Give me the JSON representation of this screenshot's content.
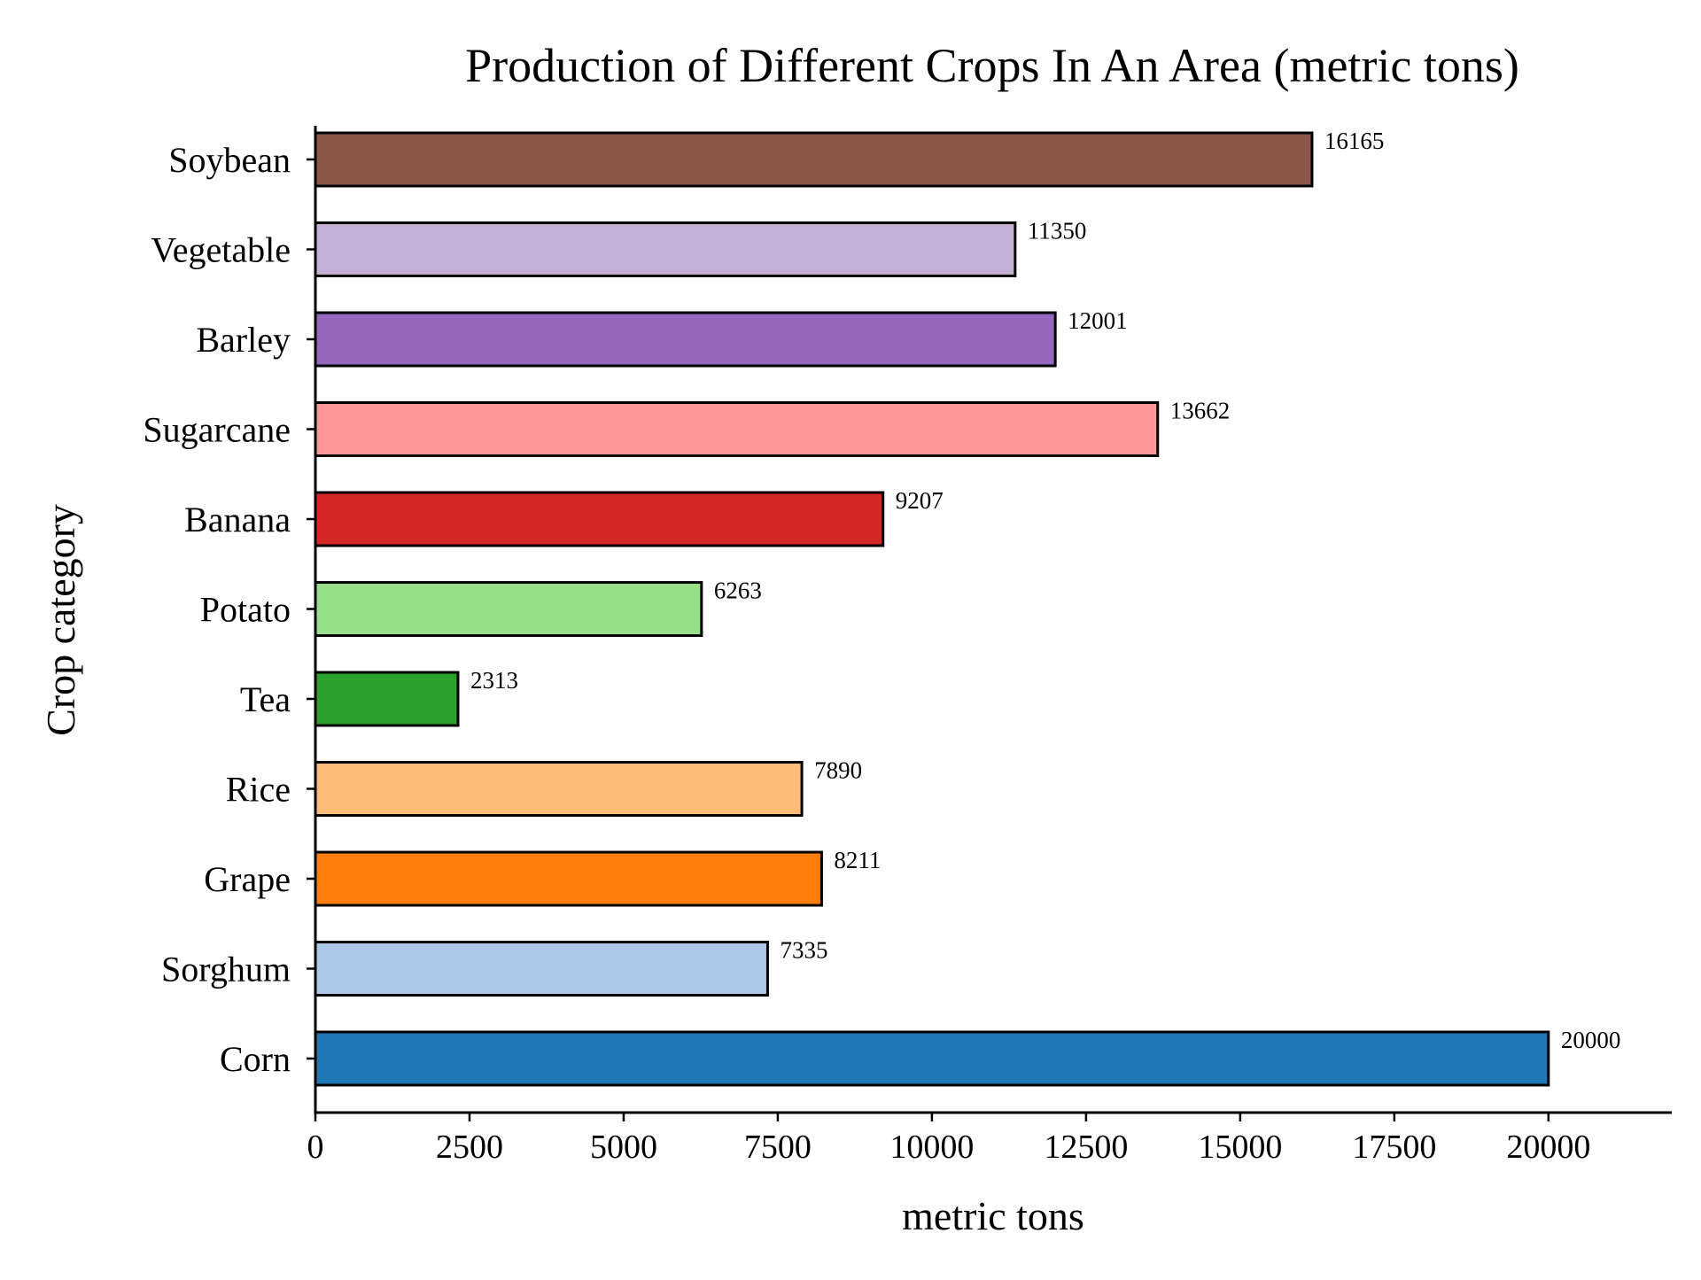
{
  "chart_data": {
    "type": "bar",
    "orientation": "horizontal",
    "title": "Production of Different Crops In An Area (metric tons)",
    "xlabel": "metric tons",
    "ylabel": "Crop category",
    "xlim": [
      0,
      22000
    ],
    "xticks": [
      0,
      2500,
      5000,
      7500,
      10000,
      12500,
      15000,
      17500,
      20000
    ],
    "categories": [
      "Corn",
      "Sorghum",
      "Grape",
      "Rice",
      "Tea",
      "Potato",
      "Banana",
      "Sugarcane",
      "Barley",
      "Vegetable",
      "Soybean"
    ],
    "values": [
      20000,
      7335,
      8211,
      7890,
      2313,
      6263,
      9207,
      13662,
      12001,
      11350,
      16165
    ],
    "colors": [
      "#1f77b4",
      "#aec7e8",
      "#ff7f0e",
      "#ffbb78",
      "#2ca02c",
      "#98df8a",
      "#d62728",
      "#ff9896",
      "#9467bd",
      "#c5b0d5",
      "#8c564b"
    ],
    "edge_color": "#000000",
    "grid": false,
    "data_labels": true
  }
}
